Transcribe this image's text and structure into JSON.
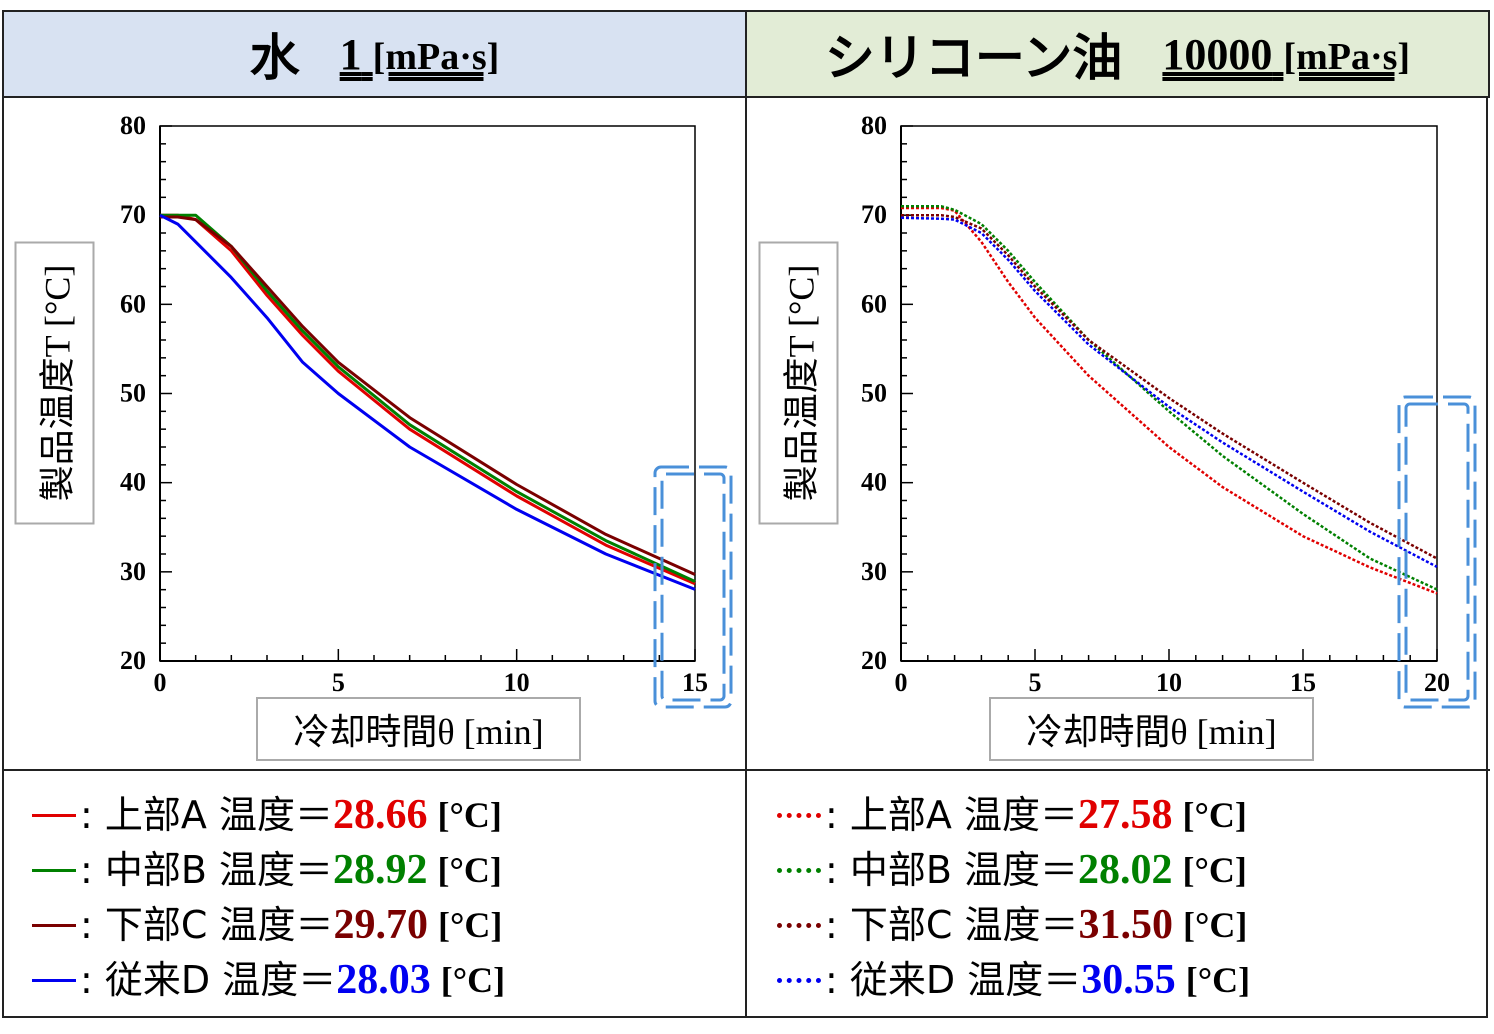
{
  "headers": [
    {
      "name": "水",
      "value": "1",
      "unit": "[mPa·s]"
    },
    {
      "name": "シリコーン油",
      "value": "10000",
      "unit": "[mPa·s]"
    }
  ],
  "colors": {
    "A": "#e00000",
    "B": "#008000",
    "C": "#7a0000",
    "D": "#0000f0",
    "highlight": "#4a90d9"
  },
  "chart_data": [
    {
      "type": "line",
      "ylabel": "製品温度T [°C]",
      "xlabel": "冷却時間θ [min]",
      "xlim": [
        0,
        15
      ],
      "ylim": [
        20,
        80
      ],
      "xticks": [
        "0",
        "5",
        "10",
        "15"
      ],
      "yticks": [
        "20",
        "30",
        "40",
        "50",
        "60",
        "70",
        "80"
      ],
      "line_style": "solid",
      "series": [
        {
          "name": "上部A",
          "color": "#e00000",
          "x": [
            0,
            0.5,
            1,
            2,
            3,
            4,
            5,
            7,
            10,
            12.5,
            15
          ],
          "y": [
            70,
            70,
            69.5,
            66,
            61,
            56.5,
            52.5,
            46,
            38.5,
            33,
            28.66
          ]
        },
        {
          "name": "中部B",
          "color": "#008000",
          "x": [
            0,
            0.5,
            1,
            2,
            3,
            4,
            5,
            7,
            10,
            12.5,
            15
          ],
          "y": [
            70,
            70,
            70,
            66.5,
            61.5,
            57,
            53,
            46.5,
            39,
            33.5,
            28.92
          ]
        },
        {
          "name": "下部C",
          "color": "#7a0000",
          "x": [
            0,
            0.5,
            1,
            2,
            3,
            4,
            5,
            7,
            10,
            12.5,
            15
          ],
          "y": [
            69.8,
            69.8,
            69.5,
            66.5,
            62,
            57.5,
            53.5,
            47.3,
            39.8,
            34.2,
            29.7
          ]
        },
        {
          "name": "従来D",
          "color": "#0000f0",
          "x": [
            0,
            0.5,
            1,
            2,
            3,
            4,
            5,
            7,
            10,
            12.5,
            15
          ],
          "y": [
            70,
            69,
            67,
            63,
            58.5,
            53.5,
            50,
            44,
            37,
            32,
            28.03
          ]
        }
      ]
    },
    {
      "type": "line",
      "ylabel": "製品温度T [°C]",
      "xlabel": "冷却時間θ [min]",
      "xlim": [
        0,
        20
      ],
      "ylim": [
        20,
        80
      ],
      "xticks": [
        "0",
        "5",
        "10",
        "15",
        "20"
      ],
      "yticks": [
        "20",
        "30",
        "40",
        "50",
        "60",
        "70",
        "80"
      ],
      "line_style": "dotted",
      "series": [
        {
          "name": "上部A",
          "color": "#e00000",
          "x": [
            0,
            1.5,
            2,
            3,
            4,
            5,
            7,
            10,
            12,
            15,
            17.5,
            20
          ],
          "y": [
            70.8,
            70.8,
            70.5,
            67,
            62.5,
            58.5,
            52,
            44,
            39.5,
            34,
            30.5,
            27.58
          ]
        },
        {
          "name": "中部B",
          "color": "#008000",
          "x": [
            0,
            1.5,
            2,
            3,
            4,
            5,
            7,
            10,
            12,
            15,
            17.5,
            20
          ],
          "y": [
            71,
            71,
            70.6,
            69,
            66,
            62.5,
            56,
            48,
            43,
            36.5,
            31.5,
            28.02
          ]
        },
        {
          "name": "下部C",
          "color": "#7a0000",
          "x": [
            0,
            1.5,
            2,
            3,
            4,
            5,
            7,
            10,
            12,
            15,
            17.5,
            20
          ],
          "y": [
            70,
            70,
            69.8,
            68.5,
            65.5,
            62,
            56,
            49.5,
            45.5,
            40,
            35.5,
            31.5
          ]
        },
        {
          "name": "従来D",
          "color": "#0000f0",
          "x": [
            0,
            1.5,
            2,
            3,
            4,
            5,
            7,
            10,
            12,
            15,
            17.5,
            20
          ],
          "y": [
            69.7,
            69.6,
            69.5,
            68,
            65,
            61.5,
            55.5,
            48.5,
            44.5,
            39,
            34.5,
            30.55
          ]
        }
      ]
    }
  ],
  "legend": [
    [
      {
        "label": "上部A 温度＝",
        "value": "28.66",
        "unit": "[°C]",
        "color": "#e00000"
      },
      {
        "label": "中部B 温度＝",
        "value": "28.92",
        "unit": "[°C]",
        "color": "#008000"
      },
      {
        "label": "下部C 温度＝",
        "value": "29.70",
        "unit": "[°C]",
        "color": "#7a0000"
      },
      {
        "label": "従来D 温度＝",
        "value": "28.03",
        "unit": "[°C]",
        "color": "#0000f0"
      }
    ],
    [
      {
        "label": "上部A 温度＝",
        "value": "27.58",
        "unit": "[°C]",
        "color": "#e00000"
      },
      {
        "label": "中部B 温度＝",
        "value": "28.02",
        "unit": "[°C]",
        "color": "#008000"
      },
      {
        "label": "下部C 温度＝",
        "value": "31.50",
        "unit": "[°C]",
        "color": "#7a0000"
      },
      {
        "label": "従来D 温度＝",
        "value": "30.55",
        "unit": "[°C]",
        "color": "#0000f0"
      }
    ]
  ]
}
